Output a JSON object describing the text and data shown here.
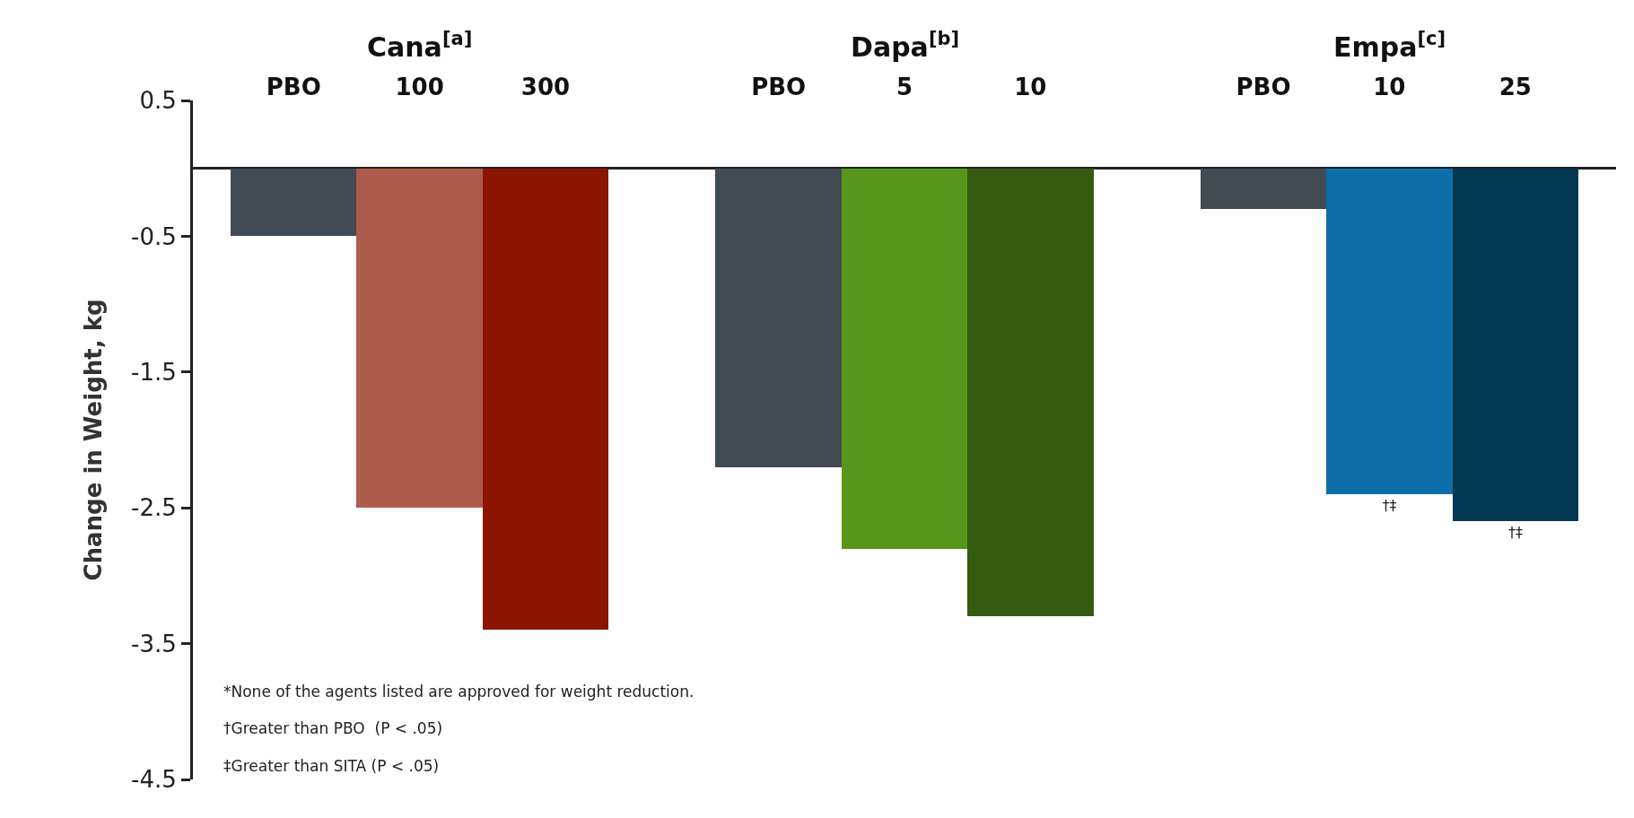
{
  "chart_data": {
    "type": "bar",
    "ylabel": "Change in Weight, kg",
    "categories": [
      "PBO",
      "100",
      "300",
      "PBO",
      "5",
      "10",
      "PBO",
      "10",
      "25"
    ],
    "values": [
      -0.5,
      -2.5,
      -3.4,
      -2.2,
      -2.8,
      -3.3,
      -0.3,
      -2.4,
      -2.6
    ],
    "colors": [
      "#414b54",
      "#ad5b4c",
      "#8b1500",
      "#414b54",
      "#57961b",
      "#355b11",
      "#414b54",
      "#0e6ea8",
      "#023852"
    ],
    "value_labels": [
      null,
      null,
      null,
      null,
      null,
      null,
      null,
      "†‡",
      "†‡"
    ],
    "ylim": [
      -4.5,
      0.5
    ],
    "yticks": [
      0.5,
      -0.5,
      -1.5,
      -2.5,
      -3.5,
      -4.5
    ],
    "annotations": [
      "Cana$^{[a]}$",
      "Dapa$^{[b]}$",
      "Empa$^{[c]}$",
      "*None of the agents listed are approved for weight reduction.",
      "†Greater than PBO  (P < .05)",
      "‡Greater than SITA (P < .05)"
    ]
  }
}
